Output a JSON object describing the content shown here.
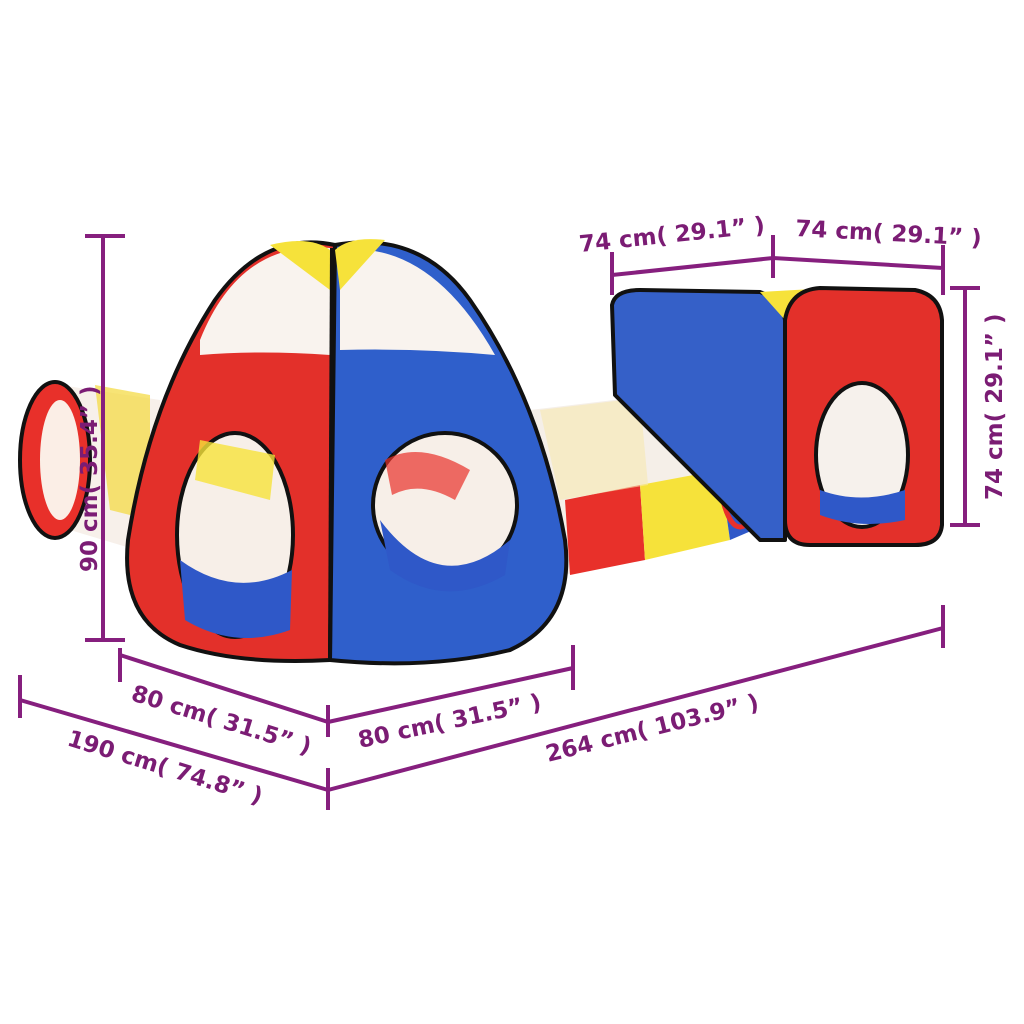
{
  "colors": {
    "dimension": "#7b1c74",
    "red": "#e02a24",
    "blue": "#2f58c8",
    "yellow": "#f6e23a"
  },
  "dimensions": {
    "height_large_tent": "90 cm( 35.4” )",
    "depth_large_tent_left": "80 cm( 31.5” )",
    "width_large_tent_right": "80 cm( 31.5” )",
    "overall_depth": "190 cm( 74.8” )",
    "overall_length": "264 cm( 103.9” )",
    "cube_width_left": "74 cm( 29.1” )",
    "cube_width_right": "74 cm( 29.1” )",
    "cube_height": "74 cm( 29.1” )"
  }
}
